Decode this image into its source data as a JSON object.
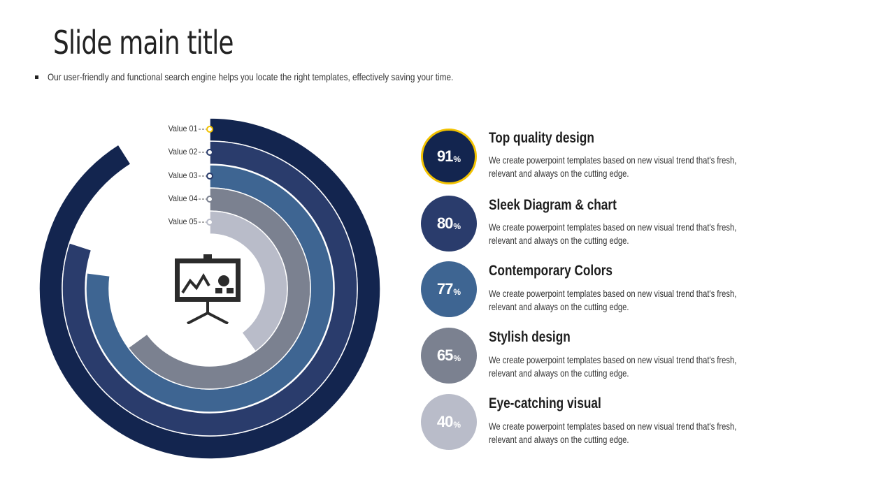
{
  "slide": {
    "title": "Slide main title",
    "subtitle": "Our user-friendly and functional search engine helps you locate the right templates, effectively saving your time."
  },
  "colors": {
    "ring1": "#13254f",
    "ring2": "#2a3c6c",
    "ring3": "#3e6592",
    "ring4": "#7b8190",
    "ring5": "#b9bcc9",
    "accent": "#f2c200"
  },
  "center_icon": "presentation-board-icon",
  "chart_data": {
    "type": "radial-bar",
    "categories": [
      "Value 01",
      "Value 02",
      "Value 03",
      "Value 04",
      "Value 05"
    ],
    "values": [
      91,
      80,
      77,
      65,
      40
    ],
    "unit": "%"
  },
  "items": [
    {
      "value": "91",
      "unit": "%",
      "title": "Top quality design",
      "desc": "We create powerpoint templates based on new visual trend that's fresh, relevant and always on the cutting edge."
    },
    {
      "value": "80",
      "unit": "%",
      "title": "Sleek Diagram & chart",
      "desc": "We create powerpoint templates based on new visual trend that's fresh, relevant and always on the cutting edge."
    },
    {
      "value": "77",
      "unit": "%",
      "title": "Contemporary Colors",
      "desc": "We create powerpoint templates based on new visual trend that's fresh, relevant and always on the cutting edge."
    },
    {
      "value": "65",
      "unit": "%",
      "title": "Stylish design",
      "desc": "We create powerpoint templates based on new visual trend that's fresh, relevant and always on the cutting edge."
    },
    {
      "value": "40",
      "unit": "%",
      "title": "Eye-catching visual",
      "desc": "We create powerpoint templates based on new visual trend that's fresh, relevant and always on the cutting edge."
    }
  ]
}
